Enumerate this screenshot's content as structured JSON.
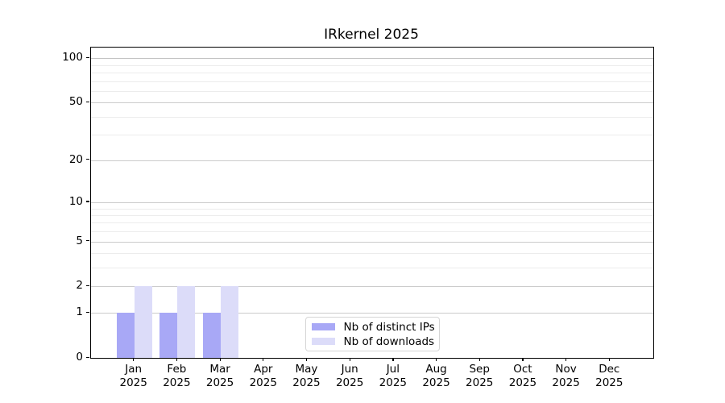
{
  "figure": {
    "background": "#ffffff"
  },
  "chart_data": {
    "type": "bar",
    "title": "IRkernel 2025",
    "categories": [
      "Jan",
      "Feb",
      "Mar",
      "Apr",
      "May",
      "Jun",
      "Jul",
      "Aug",
      "Sep",
      "Oct",
      "Nov",
      "Dec"
    ],
    "category_year": "2025",
    "series": [
      {
        "name": "Nb of distinct IPs",
        "color": "#a8a8f6",
        "values": [
          1,
          1,
          1,
          0,
          0,
          0,
          0,
          0,
          0,
          0,
          0,
          0
        ]
      },
      {
        "name": "Nb of downloads",
        "color": "#dcdcf9",
        "values": [
          2,
          2,
          2,
          0,
          0,
          0,
          0,
          0,
          0,
          0,
          0,
          0
        ]
      }
    ],
    "y_scale": "log1p",
    "ylim": [
      0,
      118
    ],
    "y_major_ticks": [
      0,
      1,
      2,
      5,
      10,
      20,
      50,
      100
    ],
    "y_minor_ticks": [
      3,
      4,
      6,
      7,
      8,
      9,
      30,
      40,
      60,
      70,
      80,
      90
    ],
    "grid": "both",
    "legend_position": "lower center",
    "colors": {
      "major_grid": "#cccccc",
      "minor_grid": "#ececec",
      "spine": "#000000",
      "text": "#000000",
      "background": "#ffffff"
    }
  }
}
